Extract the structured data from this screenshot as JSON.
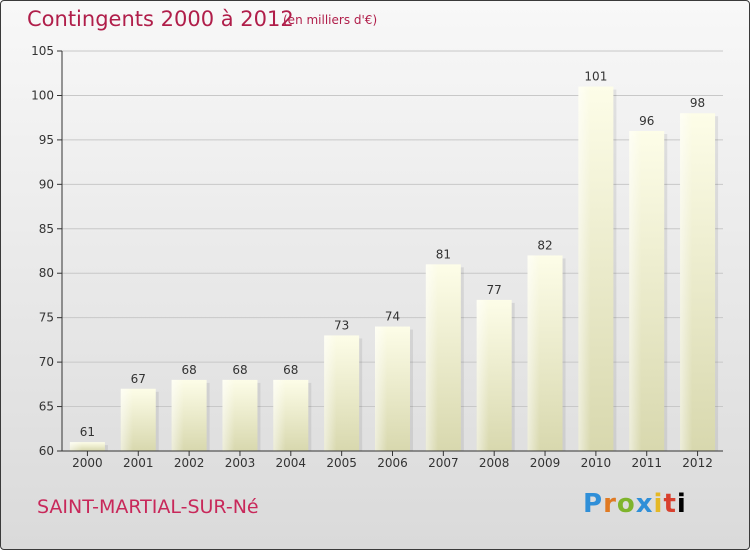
{
  "header": {
    "title": "Contingents 2000 à 2012",
    "subtitle": "(en milliers d'€)"
  },
  "footer": {
    "commune": "SAINT-MARTIAL-SUR-Né",
    "logo_letters": [
      "P",
      "r",
      "o",
      "x",
      "i",
      "t",
      "i"
    ]
  },
  "colors": {
    "title": "#b01e4a",
    "bar_light": "#fbfbe4",
    "bar_dark": "#d9d9b0",
    "axis": "#333333",
    "grid": "#c8c8c8"
  },
  "chart_data": {
    "type": "bar",
    "title": "Contingents 2000 à 2012",
    "subtitle": "(en milliers d'€)",
    "categories": [
      "2000",
      "2001",
      "2002",
      "2003",
      "2004",
      "2005",
      "2006",
      "2007",
      "2008",
      "2009",
      "2010",
      "2011",
      "2012"
    ],
    "values": [
      61,
      67,
      68,
      68,
      68,
      73,
      74,
      81,
      77,
      82,
      101,
      96,
      98
    ],
    "ylim": [
      60,
      105
    ],
    "yticks": [
      60,
      65,
      70,
      75,
      80,
      85,
      90,
      95,
      100,
      105
    ],
    "grid": true,
    "legend": "none"
  }
}
